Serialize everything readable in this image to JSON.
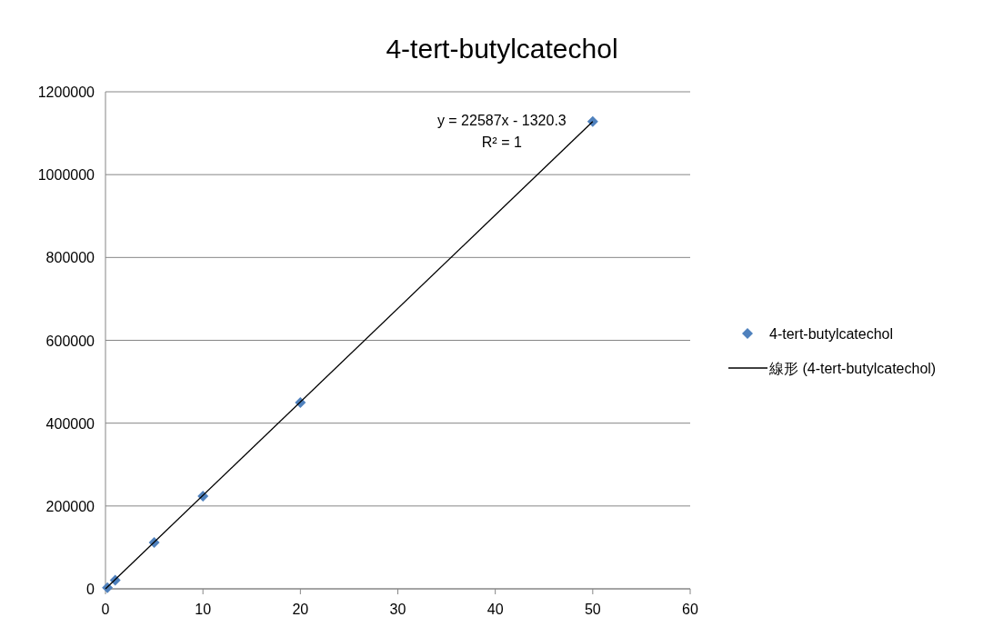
{
  "chart_data": {
    "type": "scatter",
    "title": "4-tert-butylcatechol",
    "x": [
      0.2,
      1,
      5,
      10,
      20,
      50
    ],
    "series": [
      {
        "name": "4-tert-butylcatechol",
        "color": "#4f81bd",
        "marker": "diamond",
        "values": [
          3000,
          21000,
          112000,
          224000,
          450000,
          1128000
        ]
      },
      {
        "name": "線形 (4-tert-butylcatechol)",
        "color": "#000000",
        "type": "line",
        "marker": "none",
        "x": [
          0,
          50
        ],
        "values": [
          0,
          1128000
        ]
      }
    ],
    "xlim": [
      0,
      60
    ],
    "ylim": [
      0,
      1200000
    ],
    "xticks": [
      0,
      10,
      20,
      30,
      40,
      50,
      60
    ],
    "yticks": [
      0,
      200000,
      400000,
      600000,
      800000,
      1000000,
      1200000
    ],
    "grid": "y",
    "legend": "right",
    "annotations": [
      {
        "text": "y = 22587x - 1320.3\nR² = 1",
        "x": 50,
        "y": 1128000
      }
    ]
  }
}
